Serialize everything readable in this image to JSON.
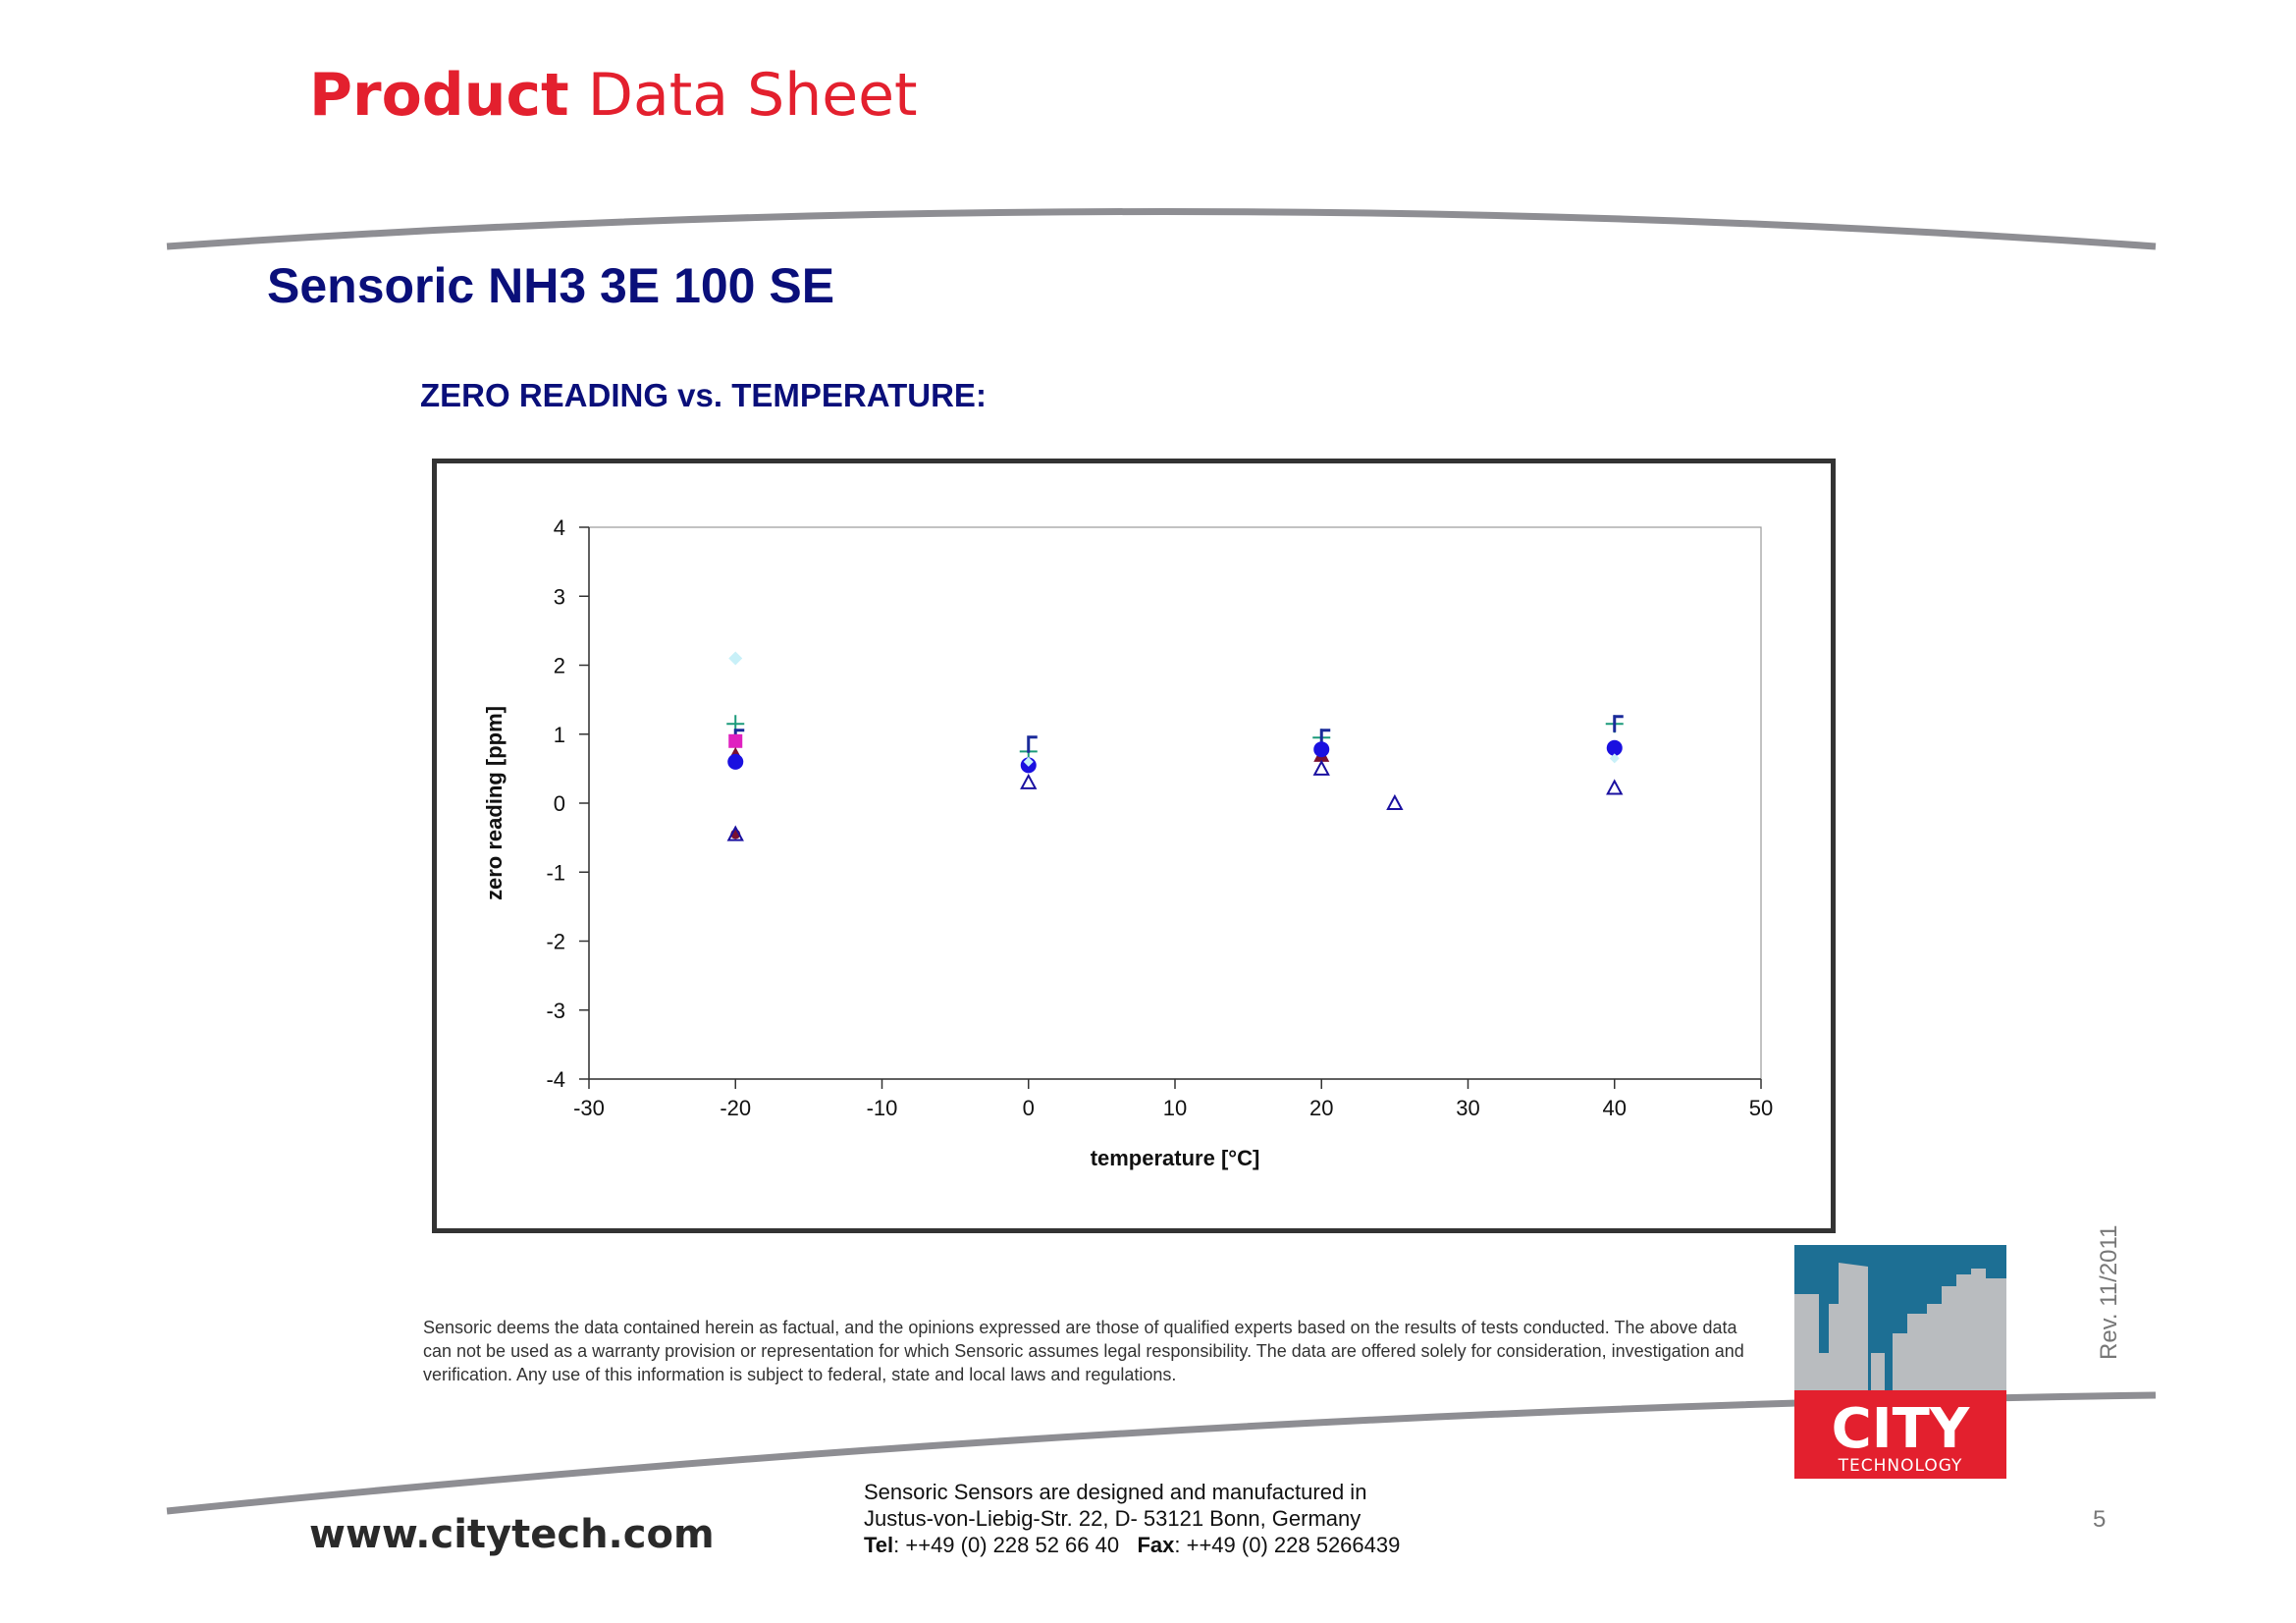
{
  "header": {
    "title_bold": "Product",
    "title_rest": "Data Sheet"
  },
  "product_title": "Sensoric NH3 3E 100 SE",
  "section_title": "ZERO READING vs. TEMPERATURE:",
  "chart_data": {
    "type": "scatter",
    "title": "",
    "xlabel": "temperature [°C]",
    "ylabel": "zero reading [ppm]",
    "xlim": [
      -30,
      50
    ],
    "ylim": [
      -4,
      4
    ],
    "xticks": [
      -30,
      -20,
      -10,
      0,
      10,
      20,
      30,
      40,
      50
    ],
    "yticks": [
      -4,
      -3,
      -2,
      -1,
      0,
      1,
      2,
      3,
      4
    ],
    "grid": false,
    "legend": "none",
    "series": [
      {
        "marker": "diamond",
        "color": "#c8f0f8",
        "points": [
          [
            -20,
            2.1
          ]
        ]
      },
      {
        "marker": "plus",
        "color": "#1a9a7a",
        "points": [
          [
            -20,
            1.15
          ],
          [
            0,
            0.75
          ],
          [
            20,
            0.95
          ],
          [
            40,
            1.15
          ]
        ]
      },
      {
        "marker": "flag",
        "color": "#1a2a9a",
        "points": [
          [
            -20,
            1.0
          ],
          [
            0,
            0.9
          ],
          [
            20,
            1.0
          ],
          [
            40,
            1.2
          ]
        ]
      },
      {
        "marker": "square",
        "color": "#e020c0",
        "points": [
          [
            -20,
            0.9
          ]
        ]
      },
      {
        "marker": "triangle-filled",
        "color": "#7a1030",
        "points": [
          [
            -20,
            0.7
          ],
          [
            20,
            0.7
          ]
        ]
      },
      {
        "marker": "circle",
        "color": "#1a10e0",
        "points": [
          [
            -20,
            0.6
          ],
          [
            0,
            0.55
          ],
          [
            20,
            0.78
          ],
          [
            40,
            0.8
          ]
        ]
      },
      {
        "marker": "circle-small",
        "color": "#7a1030",
        "points": [
          [
            -20,
            -0.45
          ]
        ]
      },
      {
        "marker": "triangle-open",
        "color": "#1a10a0",
        "points": [
          [
            -20,
            -0.45
          ],
          [
            0,
            0.3
          ],
          [
            20,
            0.5
          ],
          [
            25,
            0.0
          ],
          [
            40,
            0.22
          ]
        ]
      },
      {
        "marker": "diamond-small",
        "color": "#c8f0f8",
        "points": [
          [
            0,
            0.6
          ],
          [
            40,
            0.65
          ]
        ]
      }
    ]
  },
  "disclaimer": "Sensoric deems the data contained herein as factual, and the opinions expressed are those of qualified experts based on the results of tests conducted. The above data can not be used as a warranty provision or representation for which Sensoric assumes legal responsibility. The data are offered solely for consideration, investigation and verification. Any use of this information is subject to federal, state and local laws and regulations.",
  "footer": {
    "website": "www.citytech.com",
    "addr_line1": "Sensoric Sensors are designed and manufactured in",
    "addr_line2": "Justus-von-Liebig-Str. 22, D- 53121 Bonn, Germany",
    "tel_label": "Tel",
    "tel_value": ": ++49 (0) 228 52 66 40",
    "fax_label": "Fax",
    "fax_value": ": ++49 (0) 228 5266439",
    "page_number": "5",
    "revision": "Rev. 11/2011"
  },
  "logo": {
    "text": "CITY",
    "subtext": "TECHNOLOGY",
    "colors": {
      "sky": "#1d6f94",
      "buildings": "#b9bcbf",
      "red": "#e3202e"
    }
  }
}
